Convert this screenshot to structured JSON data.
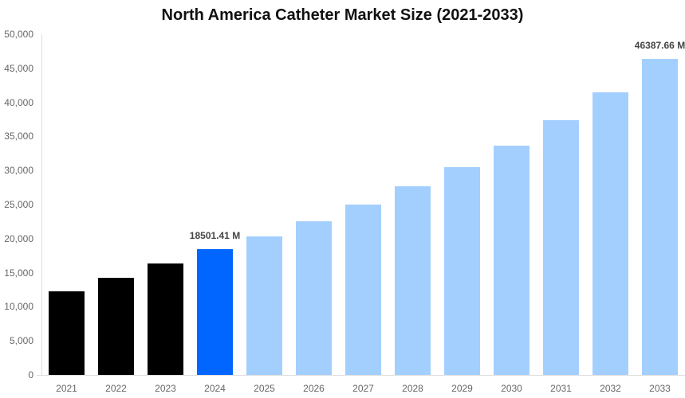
{
  "chart_data": {
    "type": "bar",
    "title": "North America Catheter Market Size (2021-2033)",
    "xlabel": "",
    "ylabel": "",
    "ylim": [
      0,
      50000
    ],
    "yticks": [
      "0",
      "5,000",
      "10,000",
      "15,000",
      "20,000",
      "25,000",
      "30,000",
      "35,000",
      "40,000",
      "45,000",
      "50,000"
    ],
    "grid": false,
    "legend": "none",
    "categories": [
      "2021",
      "2022",
      "2023",
      "2024",
      "2025",
      "2026",
      "2027",
      "2028",
      "2029",
      "2030",
      "2031",
      "2032",
      "2033"
    ],
    "values": [
      12300,
      14200,
      16300,
      18501.41,
      20300,
      22600,
      25060,
      27670,
      30530,
      33690,
      37350,
      41450,
      46387.66
    ],
    "bar_colors": [
      "#000000",
      "#000000",
      "#000000",
      "#0066ff",
      "#a3cfff",
      "#a3cfff",
      "#a3cfff",
      "#a3cfff",
      "#a3cfff",
      "#a3cfff",
      "#a3cfff",
      "#a3cfff",
      "#a3cfff"
    ],
    "annotations": [
      {
        "category": "2024",
        "text": "18501.41 M"
      },
      {
        "category": "2033",
        "text": "46387.66 M"
      }
    ]
  }
}
